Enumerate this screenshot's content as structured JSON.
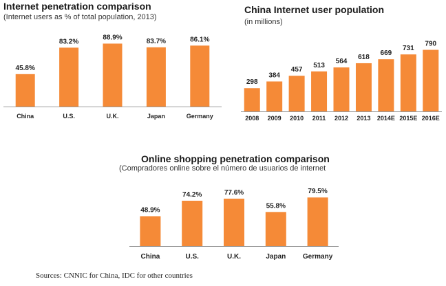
{
  "colors": {
    "bar": "#F58A37",
    "axis": "#9a9a9a"
  },
  "chart_data": [
    {
      "type": "bar",
      "title": "Internet penetration comparison",
      "subtitle": "(Internet users as % of total population, 2013)",
      "categories": [
        "China",
        "U.S.",
        "U.K.",
        "Japan",
        "Germany"
      ],
      "values": [
        45.8,
        83.2,
        88.9,
        83.7,
        86.1
      ],
      "value_labels": [
        "45.8%",
        "83.2%",
        "88.9%",
        "83.7%",
        "86.1%"
      ],
      "ylim": [
        0,
        100
      ],
      "xlabel": "",
      "ylabel": ""
    },
    {
      "type": "bar",
      "title": "China Internet user population",
      "subtitle": "(in millions)",
      "categories": [
        "2008",
        "2009",
        "2010",
        "2011",
        "2012",
        "2013",
        "2014E",
        "2015E",
        "2016E"
      ],
      "values": [
        298,
        384,
        457,
        513,
        564,
        618,
        669,
        731,
        790
      ],
      "value_labels": [
        "298",
        "384",
        "457",
        "513",
        "564",
        "618",
        "669",
        "731",
        "790"
      ],
      "ylim": [
        0,
        900
      ],
      "xlabel": "",
      "ylabel": ""
    },
    {
      "type": "bar",
      "title": "Online shopping penetration  comparison",
      "subtitle": "(Compradores online sobre el número de usuarios de internet",
      "categories": [
        "China",
        "U.S.",
        "U.K.",
        "Japan",
        "Germany"
      ],
      "values": [
        48.9,
        74.2,
        77.6,
        55.8,
        79.5
      ],
      "value_labels": [
        "48.9%",
        "74.2%",
        "77.6%",
        "55.8%",
        "79.5%"
      ],
      "ylim": [
        0,
        100
      ],
      "xlabel": "",
      "ylabel": ""
    }
  ],
  "footer": {
    "sources": "Sources: CNNIC for China, IDC for other countries"
  }
}
